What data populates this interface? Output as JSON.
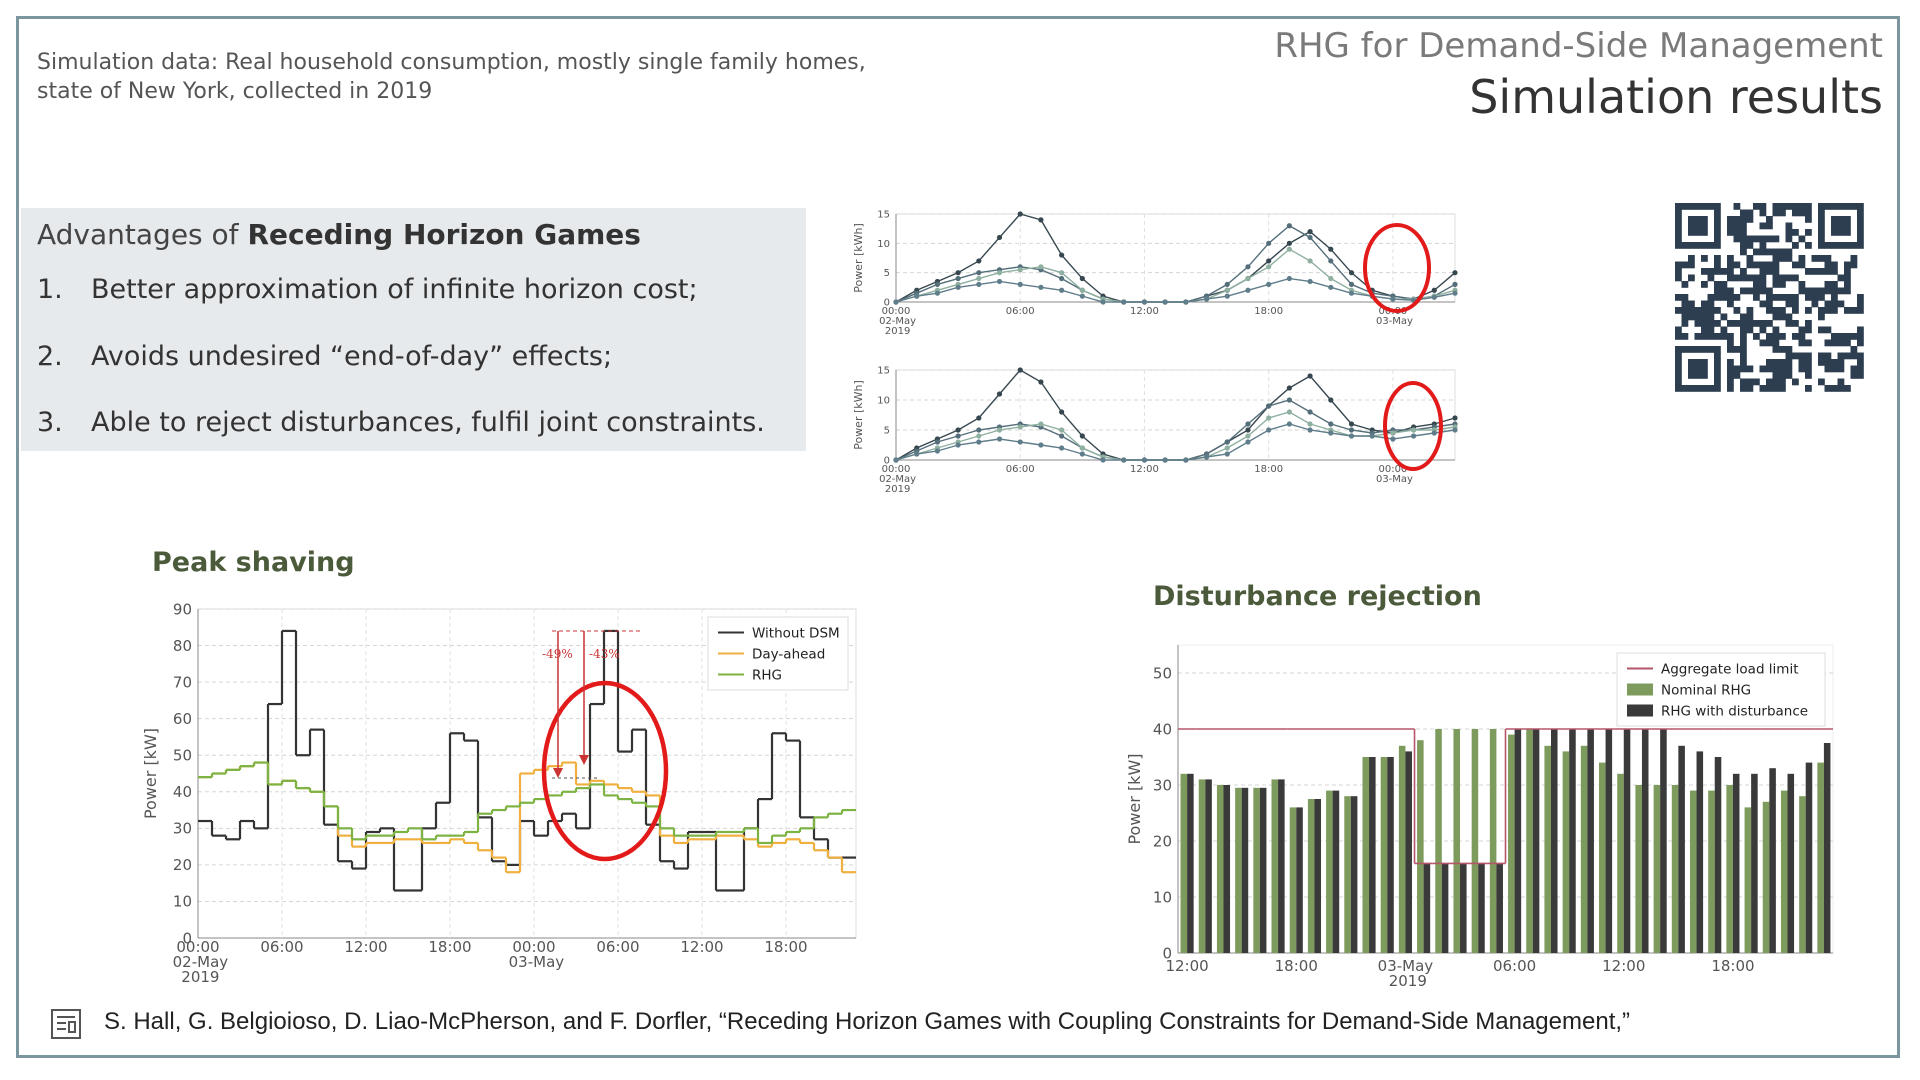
{
  "header": {
    "kicker": "RHG for Demand-Side Management",
    "title": "Simulation results"
  },
  "note": "Simulation data: Real household consumption, mostly single family homes, state of New York, collected in 2019",
  "advantages": {
    "heading": "Advantages of ",
    "heading_bold": "Receding Horizon Games",
    "items": [
      {
        "number": "1.",
        "text": "Better approximation of infinite horizon cost;"
      },
      {
        "number": "2.",
        "text": "Avoids undesired “end-of-day” effects;"
      },
      {
        "number": "3.",
        "text": "Able to reject disturbances, fulfil joint constraints."
      }
    ]
  },
  "citation": "S. Hall, G. Belgioioso, D. Liao-McPherson, and F. Dorfler, “Receding Horizon Games with Coupling Constraints for Demand-Side Management,”",
  "chart_data": [
    {
      "type": "line",
      "ylabel": "Power [kWh]",
      "markers": true,
      "grid": true,
      "x": [
        0,
        1,
        2,
        3,
        4,
        5,
        6,
        7,
        8,
        9,
        10,
        11,
        12,
        13,
        14,
        15,
        16,
        17,
        18,
        19,
        20,
        21,
        22,
        23,
        24,
        25,
        26,
        27
      ],
      "xlim": [
        0,
        27
      ],
      "xticks": [
        {
          "value": 0,
          "label": "00:00 02-May 2019"
        },
        {
          "value": 6,
          "label": "06:00"
        },
        {
          "value": 12,
          "label": "12:00"
        },
        {
          "value": 18,
          "label": "18:00"
        },
        {
          "value": 24,
          "label": "00:00 03-May"
        }
      ],
      "ylim": [
        0,
        15
      ],
      "yticks": [
        0,
        5,
        10,
        15
      ],
      "series": [
        {
          "color": "#37474f",
          "values": [
            0,
            2,
            3.5,
            5,
            7,
            11,
            15,
            14,
            8,
            4,
            1,
            0,
            0,
            0,
            0,
            1,
            2,
            4,
            7,
            10,
            12,
            9,
            5,
            2,
            1,
            0.5,
            2,
            5
          ]
        },
        {
          "color": "#546e7a",
          "values": [
            0,
            1.5,
            3,
            4,
            5,
            5.5,
            6,
            5.5,
            4,
            2,
            0.5,
            0,
            0,
            0,
            0,
            1,
            3,
            6,
            10,
            13,
            11,
            7,
            3,
            1.5,
            1,
            0.5,
            1,
            3
          ]
        },
        {
          "color": "#8fb0a0",
          "values": [
            0,
            1,
            2,
            3,
            4,
            5,
            5.5,
            6,
            5,
            2,
            0.5,
            0,
            0,
            0,
            0,
            0.5,
            2,
            4,
            6,
            9,
            7,
            4,
            2,
            1,
            0.5,
            0.5,
            1,
            2
          ]
        },
        {
          "color": "#607d8b",
          "values": [
            0,
            1,
            1.5,
            2.5,
            3,
            3.5,
            3,
            2.5,
            2,
            1,
            0,
            0,
            0,
            0,
            0,
            0.5,
            1,
            2,
            3,
            4,
            3.5,
            2.5,
            1.5,
            1,
            0.5,
            0.3,
            0.8,
            1.5
          ]
        }
      ]
    },
    {
      "type": "line",
      "ylabel": "Power [kWh]",
      "markers": true,
      "grid": true,
      "x": [
        0,
        1,
        2,
        3,
        4,
        5,
        6,
        7,
        8,
        9,
        10,
        11,
        12,
        13,
        14,
        15,
        16,
        17,
        18,
        19,
        20,
        21,
        22,
        23,
        24,
        25,
        26,
        27
      ],
      "xlim": [
        0,
        27
      ],
      "xticks": [
        {
          "value": 0,
          "label": "00:00 02-May 2019"
        },
        {
          "value": 6,
          "label": "06:00"
        },
        {
          "value": 12,
          "label": "12:00"
        },
        {
          "value": 18,
          "label": "18:00"
        },
        {
          "value": 24,
          "label": "00:00 03-May"
        }
      ],
      "ylim": [
        0,
        15
      ],
      "yticks": [
        0,
        5,
        10,
        15
      ],
      "series": [
        {
          "color": "#37474f",
          "values": [
            0,
            2,
            3.5,
            5,
            7,
            11,
            15,
            13,
            8,
            4,
            1,
            0,
            0,
            0,
            0,
            1,
            3,
            5,
            9,
            12,
            14,
            10,
            6,
            5,
            4.5,
            5.5,
            6,
            7
          ]
        },
        {
          "color": "#546e7a",
          "values": [
            0,
            1.5,
            3,
            4,
            5,
            5.5,
            6,
            5.5,
            4,
            2,
            0.5,
            0,
            0,
            0,
            0,
            1,
            3,
            6,
            9,
            10,
            8,
            6,
            5,
            4.5,
            5,
            5,
            5.5,
            6
          ]
        },
        {
          "color": "#8fb0a0",
          "values": [
            0,
            1,
            2,
            3,
            4,
            5,
            5.5,
            6,
            5,
            2,
            0.5,
            0,
            0,
            0,
            0,
            0.5,
            2,
            4,
            7,
            8,
            6,
            5,
            4,
            4,
            4.5,
            5,
            5,
            5.5
          ]
        },
        {
          "color": "#607d8b",
          "values": [
            0,
            1,
            1.5,
            2.5,
            3,
            3.5,
            3,
            2.5,
            2,
            1,
            0,
            0,
            0,
            0,
            0,
            0.5,
            1,
            3,
            5,
            6,
            5,
            4.5,
            4,
            4,
            3.5,
            4,
            4.5,
            5
          ]
        }
      ]
    },
    {
      "type": "line",
      "step": true,
      "title": "Peak shaving",
      "ylabel": "Power [kW]",
      "grid": true,
      "legend": "upper right",
      "x": [
        0,
        1,
        2,
        3,
        4,
        5,
        6,
        7,
        8,
        9,
        10,
        11,
        12,
        13,
        14,
        15,
        16,
        17,
        18,
        19,
        20,
        21,
        22,
        23,
        24,
        25,
        26,
        27,
        28,
        29,
        30,
        31,
        32,
        33,
        34,
        35,
        36,
        37,
        38,
        39,
        40,
        41,
        42,
        43,
        44,
        45,
        46
      ],
      "xlim": [
        0,
        47
      ],
      "xticks": [
        {
          "value": 0,
          "label": "00:00 02-May 2019"
        },
        {
          "value": 6,
          "label": "06:00"
        },
        {
          "value": 12,
          "label": "12:00"
        },
        {
          "value": 18,
          "label": "18:00"
        },
        {
          "value": 24,
          "label": "00:00 03-May"
        },
        {
          "value": 30,
          "label": "06:00"
        },
        {
          "value": 36,
          "label": "12:00"
        },
        {
          "value": 42,
          "label": "18:00"
        }
      ],
      "ylim": [
        0,
        90
      ],
      "yticks": [
        0,
        10,
        20,
        30,
        40,
        50,
        60,
        70,
        80,
        90
      ],
      "annotations": [
        "-49%",
        "-43%"
      ],
      "series": [
        {
          "name": "Without DSM",
          "color": "#333333",
          "values": [
            32,
            28,
            27,
            32,
            30,
            64,
            84,
            50,
            57,
            31,
            21,
            19,
            29,
            30,
            13,
            13,
            30,
            37,
            56,
            54,
            33,
            21,
            20,
            32,
            28,
            32,
            34,
            30,
            64,
            84,
            51,
            57,
            31,
            21,
            19,
            29,
            29,
            13,
            13,
            30,
            38,
            56,
            54,
            33,
            27,
            22,
            22
          ]
        },
        {
          "name": "Day-ahead",
          "color": "#f0b040",
          "values": [
            44,
            45,
            46,
            47,
            48,
            42,
            43,
            41,
            40,
            36,
            28,
            25,
            26,
            26,
            27,
            27,
            26,
            26,
            27,
            26,
            24,
            22,
            18,
            45,
            46,
            47,
            48,
            42,
            43,
            42,
            41,
            40,
            39,
            28,
            26,
            27,
            27,
            28,
            28,
            27,
            25,
            26,
            27,
            26,
            24,
            22,
            18
          ]
        },
        {
          "name": "RHG",
          "color": "#7cb342",
          "values": [
            44,
            45,
            46,
            47,
            48,
            42,
            43,
            41,
            40,
            36,
            30,
            27,
            28,
            28,
            29,
            30,
            27,
            28,
            28,
            29,
            34,
            35,
            36,
            37,
            38,
            39,
            40,
            41,
            42,
            39,
            38,
            37,
            36,
            30,
            28,
            28,
            28,
            29,
            29,
            30,
            26,
            28,
            29,
            30,
            33,
            34,
            35
          ]
        }
      ]
    },
    {
      "type": "bar",
      "title": "Disturbance rejection",
      "ylabel": "Power [kW]",
      "grid": true,
      "legend": "upper right",
      "categories": [
        "12:00",
        null,
        null,
        null,
        null,
        null,
        "18:00",
        null,
        null,
        null,
        null,
        null,
        "03-May 2019",
        null,
        null,
        null,
        null,
        null,
        "06:00",
        null,
        null,
        null,
        null,
        null,
        "12:00",
        null,
        null,
        null,
        null,
        null,
        "18:00",
        null,
        null,
        null,
        null,
        null
      ],
      "ylim": [
        0,
        55
      ],
      "yticks": [
        0,
        10,
        20,
        30,
        40,
        50
      ],
      "series": [
        {
          "name": "Aggregate load limit",
          "type": "line",
          "color": "#b5556a",
          "values": [
            40,
            40,
            40,
            40,
            40,
            40,
            40,
            40,
            40,
            40,
            40,
            40,
            40,
            16,
            16,
            16,
            16,
            16,
            40,
            40,
            40,
            40,
            40,
            40,
            40,
            40,
            40,
            40,
            40,
            40,
            40,
            40,
            40,
            40,
            40,
            40
          ]
        },
        {
          "name": "Nominal RHG",
          "color": "#7d9b5c",
          "values": [
            32,
            31,
            30,
            29.5,
            29.5,
            31,
            26,
            27.5,
            29,
            28,
            35,
            35,
            37,
            38,
            40,
            40,
            40,
            40,
            39,
            40,
            37,
            36,
            37,
            34,
            32,
            30,
            30,
            30,
            29,
            29,
            30,
            26,
            27,
            29,
            28,
            34
          ]
        },
        {
          "name": "RHG with disturbance",
          "color": "#3a3a3a",
          "values": [
            32,
            31,
            30,
            29.5,
            29.5,
            31,
            26,
            27.5,
            29,
            28,
            35,
            35,
            36,
            16,
            16,
            16,
            16,
            16,
            40,
            40,
            40,
            40,
            40,
            40,
            40,
            40,
            40,
            37,
            36,
            35,
            32,
            32,
            33,
            32,
            34,
            37.5
          ]
        }
      ]
    }
  ]
}
